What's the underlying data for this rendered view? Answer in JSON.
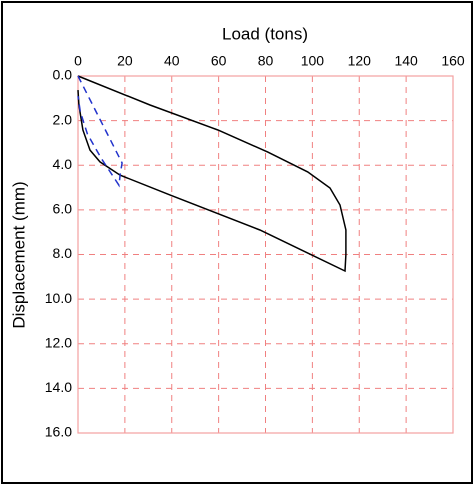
{
  "chart_data": {
    "type": "line",
    "x_label": "Load (tons)",
    "y_label": "Displacement (mm)",
    "x_axis_position": "top",
    "xlim": [
      0,
      160
    ],
    "xticks": [
      0,
      20,
      40,
      60,
      80,
      100,
      120,
      140,
      160
    ],
    "ylim": [
      16,
      0
    ],
    "yticks": [
      {
        "value": 0,
        "label": "0.0"
      },
      {
        "value": 2,
        "label": "2.0"
      },
      {
        "value": 4,
        "label": "4.0"
      },
      {
        "value": 6,
        "label": "6.0"
      },
      {
        "value": 8,
        "label": "8.0"
      },
      {
        "value": 10,
        "label": "10.0"
      },
      {
        "value": 12,
        "label": "12.0"
      },
      {
        "value": 14,
        "label": "14.0"
      },
      {
        "value": 16,
        "label": "16.0"
      }
    ],
    "grid": true,
    "grid_color": "#f08080",
    "frame_color": "#f4a0a0",
    "series": [
      {
        "color": "#000000",
        "dash": false,
        "x": [
          0,
          30.7,
          59.7,
          81,
          98,
          107.5,
          111.8,
          114.3,
          114.3,
          113.9,
          77.6,
          39.2,
          17.9,
          9.4,
          5.1,
          2.1,
          0.4,
          0
        ],
        "values": [
          0,
          1.3,
          2.42,
          3.41,
          4.3,
          5.02,
          5.78,
          6.9,
          8.0,
          8.74,
          6.9,
          5.33,
          4.44,
          3.85,
          3.32,
          2.42,
          1.3,
          0.63
        ]
      },
      {
        "color": "#2233cc",
        "dash": true,
        "x": [
          0,
          18.8,
          18.0,
          17.5,
          10,
          4,
          1,
          0
        ],
        "values": [
          0,
          3.9,
          4.4,
          4.9,
          3.7,
          2.6,
          1.6,
          0.9
        ]
      }
    ]
  }
}
